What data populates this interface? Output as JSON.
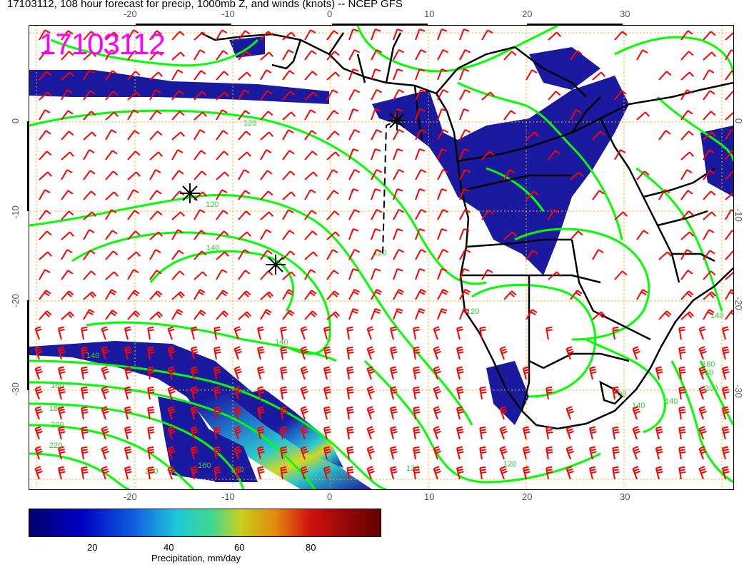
{
  "title": "17103112, 108 hour forecast for precip, 1000mb Z, and winds (knots) -- NCEP GFS",
  "stamp": "17103112",
  "axes": {
    "top_ticks": [
      "-20",
      "-10",
      "0",
      "10",
      "20",
      "30"
    ],
    "bottom_ticks": [
      "-20",
      "-10",
      "0",
      "10",
      "20",
      "30"
    ],
    "left_ticks": [
      "0",
      "-10",
      "-20",
      "-30"
    ],
    "right_ticks": [
      "0",
      "-10",
      "-20",
      "-30"
    ],
    "lon_range": [
      -30,
      41
    ],
    "lat_range": [
      10.5,
      -40
    ]
  },
  "contour_labels": [
    "120",
    "140",
    "120",
    "140",
    "120",
    "140",
    "160",
    "180",
    "200",
    "220",
    "200",
    "160",
    "140",
    "120",
    "140",
    "160",
    "180",
    "200",
    "200",
    "140",
    "140",
    "120",
    "120"
  ],
  "colorbar": {
    "ticks": [
      "20",
      "40",
      "60",
      "80"
    ],
    "label": "Precipitation, mm/day",
    "range": [
      0,
      100
    ]
  },
  "colors": {
    "stamp": "#ff00ff",
    "contours": "#00ff00",
    "wind_barbs": "#ff0000",
    "grid": "#ffa500",
    "precip_low": "#1a1aa0"
  }
}
